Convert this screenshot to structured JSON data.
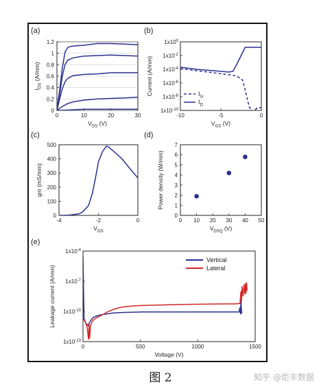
{
  "caption": "图 2",
  "watermark": "知乎 @炬丰数据",
  "colors": {
    "blue": "#2b2f8f",
    "red": "#d32525",
    "axis": "#222222"
  },
  "chart_data": [
    {
      "id": "a",
      "panel_label": "(a)",
      "type": "line",
      "xlabel": "V",
      "xlabel_sub": "DS",
      "xlabel_unit": " (V)",
      "ylabel": "I",
      "ylabel_sub": "DS",
      "ylabel_unit": " (A/mm)",
      "xlim": [
        0,
        30
      ],
      "ylim": [
        0,
        1.2
      ],
      "xticks": [
        "0",
        "10",
        "20",
        "30"
      ],
      "yticks": [
        "0",
        "0.2",
        "0.4",
        "0.6",
        "0.8",
        "1",
        "1.2"
      ],
      "series": [
        {
          "x": [
            0,
            1,
            2,
            3,
            4,
            5,
            7,
            10,
            15,
            20,
            25,
            30
          ],
          "y": [
            0,
            0.35,
            0.75,
            1.02,
            1.1,
            1.12,
            1.13,
            1.14,
            1.17,
            1.17,
            1.16,
            1.15
          ]
        },
        {
          "x": [
            0,
            1,
            2,
            3,
            4,
            6,
            10,
            15,
            20,
            25,
            30
          ],
          "y": [
            0,
            0.28,
            0.6,
            0.8,
            0.88,
            0.92,
            0.95,
            0.96,
            0.97,
            0.96,
            0.95
          ]
        },
        {
          "x": [
            0,
            1,
            2,
            3,
            4,
            6,
            10,
            15,
            20,
            25,
            30
          ],
          "y": [
            0,
            0.2,
            0.38,
            0.5,
            0.56,
            0.61,
            0.63,
            0.64,
            0.66,
            0.66,
            0.66
          ]
        },
        {
          "x": [
            0,
            2,
            4,
            6,
            10,
            15,
            20,
            25,
            30
          ],
          "y": [
            0,
            0.07,
            0.12,
            0.15,
            0.18,
            0.2,
            0.21,
            0.22,
            0.23
          ]
        },
        {
          "x": [
            0,
            5,
            10,
            20,
            30
          ],
          "y": [
            0,
            0.01,
            0.02,
            0.02,
            0.02
          ]
        }
      ]
    },
    {
      "id": "b",
      "panel_label": "(b)",
      "type": "line",
      "xlabel": "V",
      "xlabel_sub": "GS",
      "xlabel_unit": " (V)",
      "ylabel": "Current (A/mm)",
      "xlim": [
        -10,
        0
      ],
      "ylim_exp": [
        -10,
        0
      ],
      "log_y": true,
      "xticks": [
        "-10",
        "-5",
        "0"
      ],
      "yticks": [
        "1x10",
        "1x10",
        "1x10",
        "1x10",
        "1x10",
        "1x10"
      ],
      "ytick_exps": [
        "0",
        "-2",
        "-4",
        "-6",
        "-8",
        "-10"
      ],
      "legend": {
        "position": "bottom-left",
        "entries": [
          {
            "name": "I",
            "sub": "G",
            "style": "dashed"
          },
          {
            "name": "I",
            "sub": "D",
            "style": "solid"
          }
        ]
      },
      "series": [
        {
          "name": "ID",
          "style": "solid",
          "x": [
            -10,
            -8,
            -6,
            -4,
            -3.5,
            -3,
            -2.5,
            -2,
            -1,
            0
          ],
          "y_exp": [
            -3.7,
            -4.0,
            -4.2,
            -4.4,
            -4.3,
            -3.2,
            -2.0,
            -0.8,
            -0.8,
            -0.8
          ]
        },
        {
          "name": "IG",
          "style": "dashed",
          "x": [
            -10,
            -8,
            -6,
            -4,
            -3,
            -2.3,
            -2,
            -1.5,
            -1,
            -0.5,
            0
          ],
          "y_exp": [
            -3.9,
            -4.2,
            -4.5,
            -4.8,
            -5.0,
            -5.6,
            -7.0,
            -9.5,
            -10.2,
            -9.6,
            -9.6
          ]
        }
      ]
    },
    {
      "id": "c",
      "panel_label": "(c)",
      "type": "line",
      "xlabel": "V",
      "xlabel_sub": "GS",
      "xlabel_unit": "",
      "ylabel": "gm (mS/mm)",
      "xlim": [
        -4,
        0
      ],
      "ylim": [
        0,
        500
      ],
      "xticks": [
        "-4",
        "-2",
        "0"
      ],
      "yticks": [
        "0",
        "100",
        "200",
        "300",
        "400",
        "500"
      ],
      "series": [
        {
          "x": [
            -4,
            -3.5,
            -3,
            -2.8,
            -2.5,
            -2.3,
            -2.1,
            -2.0,
            -1.8,
            -1.6,
            -1.5,
            -1.2,
            -0.8,
            -0.4,
            0
          ],
          "y": [
            0,
            2,
            10,
            25,
            70,
            160,
            300,
            380,
            450,
            490,
            485,
            450,
            400,
            330,
            265
          ]
        }
      ]
    },
    {
      "id": "d",
      "panel_label": "(d)",
      "type": "scatter",
      "xlabel": "V",
      "xlabel_sub": "DSQ",
      "xlabel_unit": " (V)",
      "ylabel": "Power density (W/mm)",
      "xlim": [
        0,
        50
      ],
      "ylim": [
        0,
        7
      ],
      "xticks": [
        "0",
        "10",
        "20",
        "30",
        "40",
        "50"
      ],
      "yticks": [
        "0",
        "1",
        "2",
        "3",
        "4",
        "5",
        "6",
        "7"
      ],
      "series": [
        {
          "x": [
            10,
            30,
            40
          ],
          "y": [
            1.9,
            4.2,
            5.8
          ]
        }
      ]
    },
    {
      "id": "e",
      "panel_label": "(e)",
      "type": "line",
      "xlabel": "Voltage (V)",
      "ylabel": "Leakage current (A/mm)",
      "xlim": [
        0,
        1700
      ],
      "ylim_exp": [
        -13,
        -4
      ],
      "log_y": true,
      "xticks": [
        "0",
        "500",
        "1000",
        "1500"
      ],
      "yticks": [
        "1x10",
        "1x10",
        "1x10",
        "1x10"
      ],
      "ytick_exps": [
        "-4",
        "-7",
        "-10",
        "-13"
      ],
      "legend": {
        "position": "top-right",
        "entries": [
          {
            "name": "Vertical",
            "color": "blue"
          },
          {
            "name": "Lateral",
            "color": "red"
          }
        ]
      },
      "series": [
        {
          "name": "Vertical",
          "color": "blue",
          "x": [
            0,
            10,
            30,
            50,
            70,
            100,
            150,
            200,
            300,
            400,
            600,
            800,
            1000,
            1200,
            1400,
            1500,
            1530,
            1540,
            1550,
            1555,
            1560,
            1565,
            1570
          ],
          "y_exp": [
            -4.5,
            -10.7,
            -11.2,
            -11.4,
            -11.0,
            -10.6,
            -10.4,
            -10.3,
            -10.15,
            -10.1,
            -10.05,
            -10.05,
            -10.05,
            -10.05,
            -10.05,
            -10.05,
            -10.05,
            -10.05,
            -9.6,
            -10.3,
            -8.8,
            -10.2,
            -10.0
          ]
        },
        {
          "name": "Lateral",
          "color": "red",
          "x": [
            0,
            20,
            40,
            55,
            60,
            65,
            75,
            90,
            110,
            140,
            200,
            250,
            300,
            350,
            400,
            500,
            600,
            800,
            1000,
            1200,
            1400,
            1500,
            1550,
            1560,
            1565,
            1570,
            1580,
            1590,
            1600,
            1605,
            1610,
            1615,
            1620
          ],
          "y_exp": [
            -10.7,
            -11.0,
            -11.5,
            -12.8,
            -11.2,
            -12.7,
            -11.4,
            -11.0,
            -10.8,
            -10.6,
            -10.3,
            -10.0,
            -9.8,
            -9.65,
            -9.55,
            -9.45,
            -9.4,
            -9.35,
            -9.3,
            -9.28,
            -9.25,
            -9.25,
            -9.2,
            -8.0,
            -9.0,
            -7.5,
            -8.5,
            -7.3,
            -8.3,
            -7.2,
            -8.2,
            -7.1,
            -7.9
          ]
        }
      ]
    }
  ]
}
